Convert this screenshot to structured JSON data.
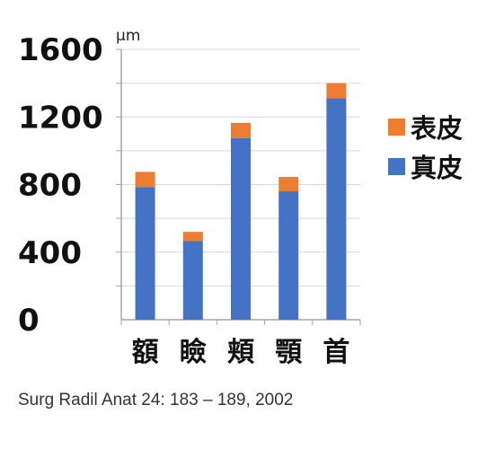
{
  "chart_data": {
    "type": "bar",
    "stacked": true,
    "categories": [
      "額",
      "瞼",
      "頬",
      "顎",
      "首"
    ],
    "series": [
      {
        "name": "真皮",
        "color": "#4472C4",
        "values": [
          785,
          465,
          1075,
          760,
          1310
        ]
      },
      {
        "name": "表皮",
        "color": "#ED7D31",
        "values": [
          90,
          55,
          90,
          85,
          90
        ]
      }
    ],
    "ylabel": "μm",
    "ylim": [
      0,
      1600
    ],
    "yticks": [
      "0",
      "400",
      "800",
      "1200",
      "1600"
    ],
    "grid": true,
    "legend_position": "right",
    "legend_order": [
      "表皮",
      "真皮"
    ]
  },
  "citation": "Surg Radil Anat 24: 183 – 189, 2002"
}
